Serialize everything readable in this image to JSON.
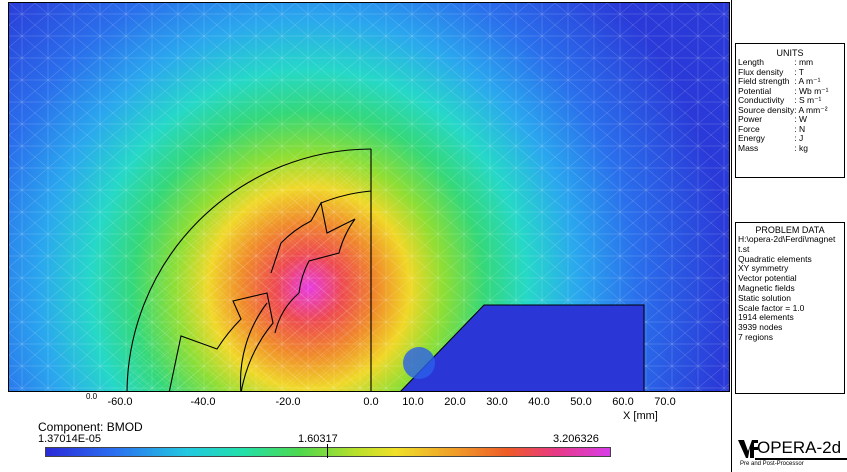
{
  "units": {
    "title": "UNITS",
    "rows": [
      {
        "name": "Length",
        "unit": ": mm"
      },
      {
        "name": "Flux density",
        "unit": ": T"
      },
      {
        "name": "Field strength",
        "unit": ": A m⁻¹"
      },
      {
        "name": "Potential",
        "unit": ": Wb m⁻¹"
      },
      {
        "name": "Conductivity",
        "unit": ": S m⁻¹"
      },
      {
        "name": "Source density",
        "unit": ": A mm⁻²"
      },
      {
        "name": "Power",
        "unit": ": W"
      },
      {
        "name": "Force",
        "unit": ": N"
      },
      {
        "name": "Energy",
        "unit": ": J"
      },
      {
        "name": "Mass",
        "unit": ": kg"
      }
    ]
  },
  "problem": {
    "title": "PROBLEM DATA",
    "lines": [
      "H:\\opera-2d\\Ferdi\\magnet",
      "t.st",
      "Quadratic elements",
      "XY symmetry",
      "Vector potential",
      "Magnetic fields",
      "Static solution",
      "Scale factor = 1.0",
      "1914 elements",
      "3939 nodes",
      "7 regions"
    ]
  },
  "xaxis": {
    "corner_label": "0.0",
    "ticks": [
      "-60.0",
      "-40.0",
      "-20.0",
      "0.0",
      "10.0",
      "20.0",
      "30.0",
      "40.0",
      "50.0",
      "60.0",
      "70.0"
    ],
    "label": "X [mm]"
  },
  "legend": {
    "component": "Component: BMOD",
    "min": "1.37014E-05",
    "mid": "1.60317",
    "max": "3.206326"
  },
  "logo": {
    "name": "OPERA-2d",
    "subtitle": "Pre and Post-Processor"
  },
  "colors": {
    "background_field": "#2a2ad8",
    "peak_field": "#d83ce8"
  }
}
